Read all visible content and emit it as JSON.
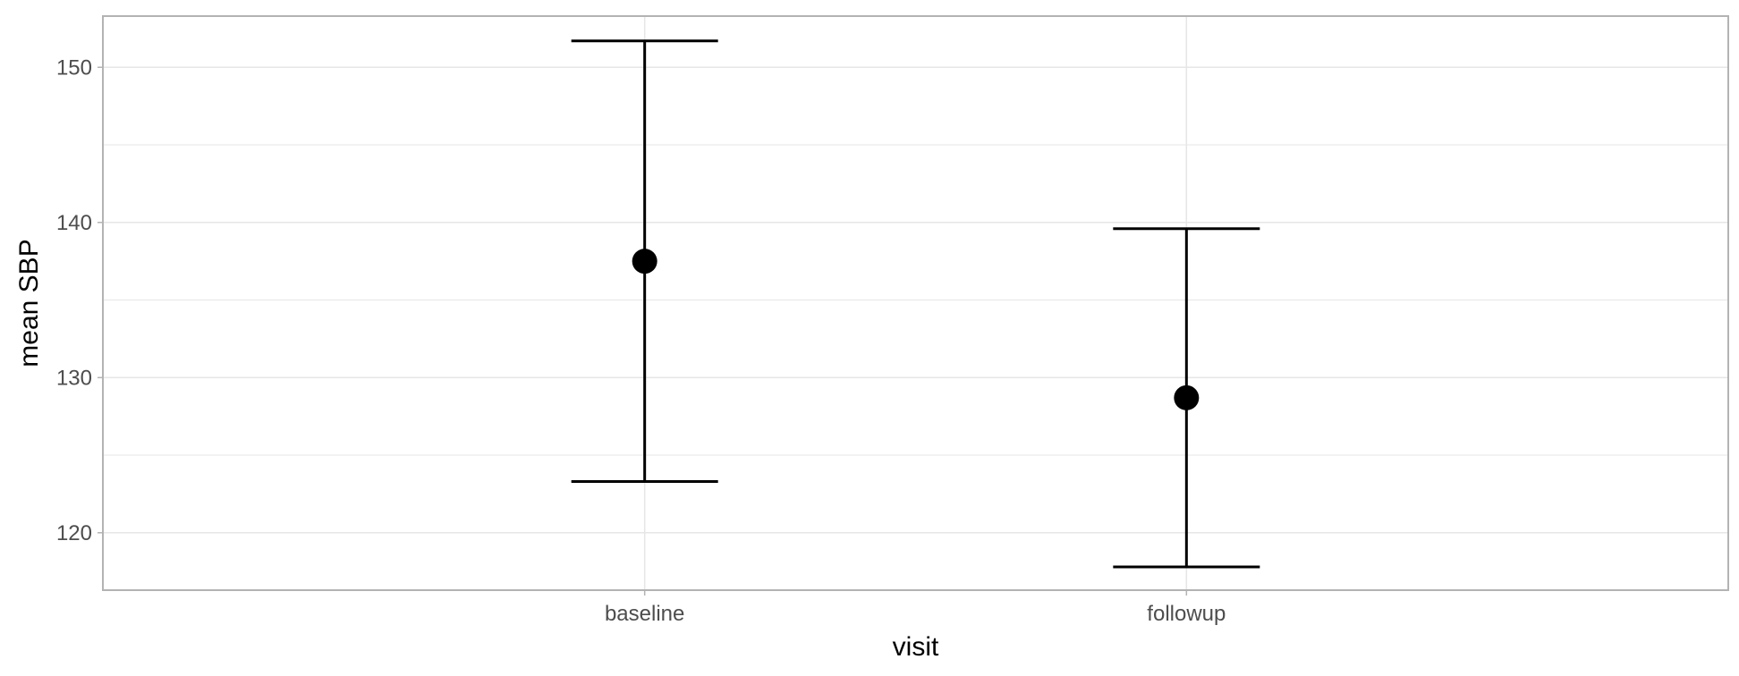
{
  "chart_data": {
    "type": "scatter",
    "title": "",
    "xlabel": "visit",
    "ylabel": "mean SBP",
    "categories": [
      "baseline",
      "followup"
    ],
    "series": [
      {
        "values": [
          137.5,
          128.7
        ],
        "lower": [
          123.3,
          117.8
        ],
        "upper": [
          151.7,
          139.6
        ]
      }
    ],
    "ylim": [
      116.3,
      153.3
    ],
    "y_ticks": [
      120,
      130,
      140,
      150
    ],
    "grid": true,
    "legend": "none",
    "colors": {
      "marks": "#000000",
      "grid": "#e6e6e6",
      "panel_border": "#b3b3b3",
      "tick_text": "#4d4d4d"
    }
  }
}
